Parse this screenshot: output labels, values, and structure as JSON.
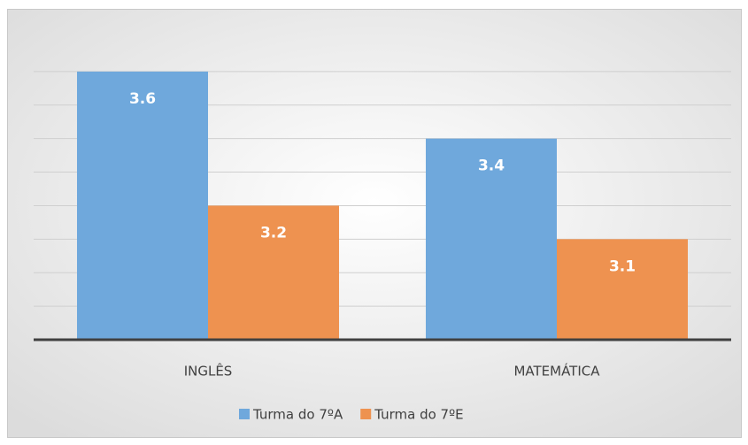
{
  "chart_data": {
    "type": "bar",
    "categories": [
      "INGLÊS",
      "MATEMÁTICA"
    ],
    "series": [
      {
        "name": "Turma do 7ºA",
        "color": "#6fa8dc",
        "values": [
          3.6,
          3.4
        ]
      },
      {
        "name": "Turma do 7ºE",
        "color": "#ee9250",
        "values": [
          3.2,
          3.1
        ]
      }
    ],
    "ylim": [
      2.8,
      3.7
    ],
    "yticks": [
      2.9,
      3.0,
      3.1,
      3.2,
      3.3,
      3.4,
      3.5,
      3.6
    ],
    "grid": true,
    "legend": "bottom"
  }
}
